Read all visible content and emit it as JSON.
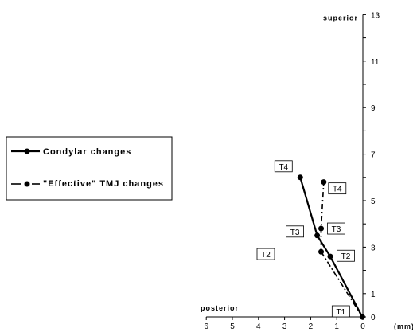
{
  "chart_data": {
    "type": "line",
    "x_label": "(mm)",
    "y_top_label": "superior",
    "x_left_label": "posterior",
    "x_ticks": [
      6,
      5,
      4,
      3,
      2,
      1,
      0
    ],
    "y_ticks": [
      0,
      1,
      3,
      5,
      7,
      9,
      11,
      13
    ],
    "xlim": [
      6,
      0
    ],
    "ylim": [
      0,
      13
    ],
    "grid": false,
    "legend_position": "left",
    "series": [
      {
        "name": "Condylar changes",
        "style": "solid",
        "color": "#000000",
        "points": [
          {
            "label": "T1",
            "x": 0.02,
            "y": 0.0
          },
          {
            "label": "T2",
            "x": 1.25,
            "y": 2.6
          },
          {
            "label": "T3",
            "x": 1.75,
            "y": 3.5
          },
          {
            "label": "T4",
            "x": 2.4,
            "y": 6.0
          }
        ]
      },
      {
        "name": "\"Effective\" TMJ changes",
        "style": "dashdot",
        "color": "#000000",
        "points": [
          {
            "label": "T1",
            "x": 0.02,
            "y": 0.0
          },
          {
            "label": "T2",
            "x": 1.6,
            "y": 2.8
          },
          {
            "label": "T3",
            "x": 1.6,
            "y": 3.8
          },
          {
            "label": "T4",
            "x": 1.5,
            "y": 5.8
          }
        ]
      }
    ]
  }
}
